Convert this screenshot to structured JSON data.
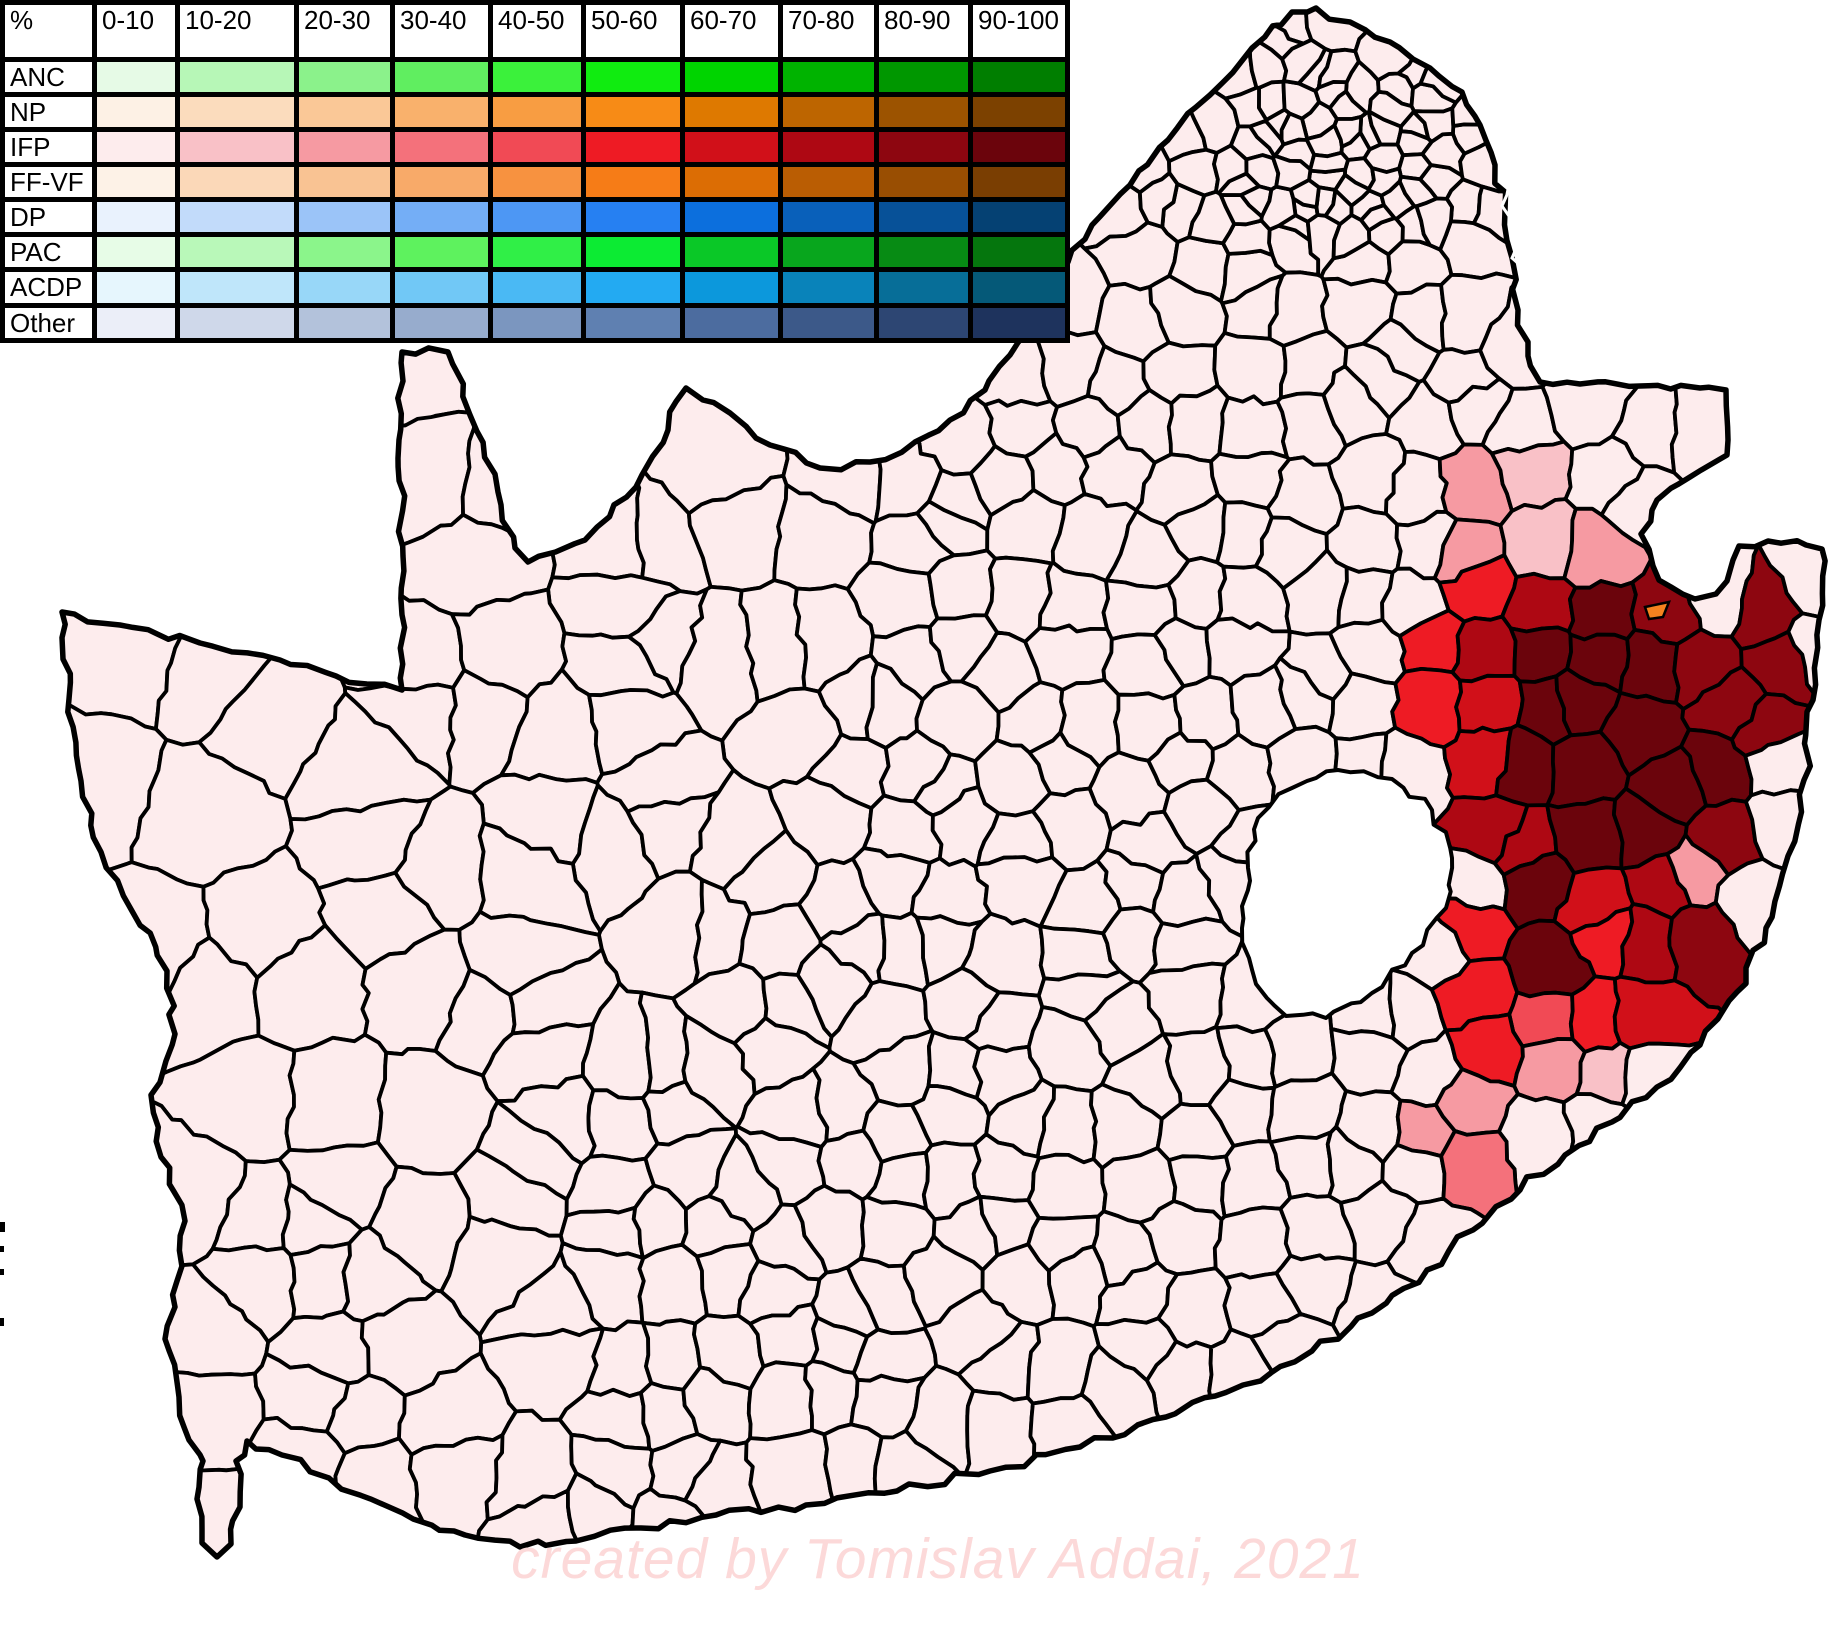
{
  "legend": {
    "header_label": "%",
    "ranges": [
      "0-10",
      "10-20",
      "20-30",
      "30-40",
      "40-50",
      "50-60",
      "60-70",
      "70-80",
      "80-90",
      "90-100"
    ],
    "parties": [
      {
        "name": "ANC",
        "colors": [
          "#e6fae6",
          "#b7f7b7",
          "#8bf28b",
          "#60ee60",
          "#3bf13b",
          "#10ec10",
          "#00d400",
          "#00b300",
          "#009700",
          "#007e00"
        ]
      },
      {
        "name": "NP",
        "colors": [
          "#fdf1e5",
          "#fbdcbd",
          "#fac897",
          "#f9b16c",
          "#f89d42",
          "#f78b16",
          "#de7900",
          "#bd6500",
          "#9c5300",
          "#7c4100"
        ]
      },
      {
        "name": "IFP",
        "colors": [
          "#fdeced",
          "#f9c1c7",
          "#f69aa2",
          "#f4717b",
          "#f14a55",
          "#ee1b24",
          "#d11019",
          "#ae0813",
          "#8d0610",
          "#6b040c"
        ]
      },
      {
        "name": "FF-VF",
        "colors": [
          "#fdf2e7",
          "#fbd8b8",
          "#f9c393",
          "#f8aa69",
          "#f79240",
          "#f67c17",
          "#dc6d04",
          "#ba5d03",
          "#994e02",
          "#7a3e02"
        ]
      },
      {
        "name": "DP",
        "colors": [
          "#e9f2fd",
          "#c2dbfa",
          "#9bc4f8",
          "#74aef6",
          "#4d97f4",
          "#2680f2",
          "#0c6fdd",
          "#0960ba",
          "#075198",
          "#054173"
        ]
      },
      {
        "name": "PAC",
        "colors": [
          "#e7fce7",
          "#b9f8b9",
          "#8bf58b",
          "#5ef25e",
          "#30ef47",
          "#0ceb33",
          "#0ac827",
          "#08a61d",
          "#078b14",
          "#05760d"
        ]
      },
      {
        "name": "ACDP",
        "colors": [
          "#e6f6fd",
          "#bfe6fa",
          "#98d7f8",
          "#71c8f6",
          "#4ab9f4",
          "#23aaf2",
          "#0c98dc",
          "#0983ba",
          "#076e98",
          "#055978"
        ]
      },
      {
        "name": "Other",
        "colors": [
          "#ebeef8",
          "#cfd8ea",
          "#b3c2db",
          "#97accd",
          "#7b96bf",
          "#5f80b1",
          "#4c6c9f",
          "#3c5989",
          "#2d4673",
          "#1e335d"
        ]
      }
    ],
    "border_color": "#000000",
    "cell_bg": "#ffffff"
  },
  "map": {
    "base_color": "#fdeced",
    "boundary_color": "#000000",
    "lesotho_fill": "#ffffff",
    "sea_color": "#ffffff",
    "province_inner_border_color": "#ffffff",
    "orange_speck_color": "#f5821f"
  },
  "watermark": {
    "text": "created by Tomislav Addai, 2021",
    "color": "#fcd9d9"
  }
}
